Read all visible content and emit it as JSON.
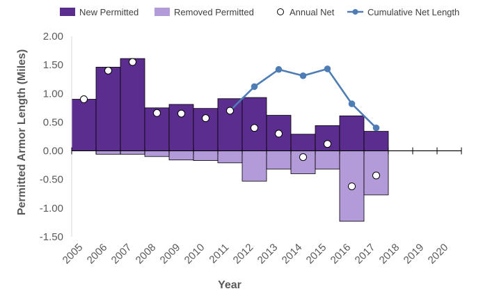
{
  "chart_data": {
    "type": "bar",
    "title": "",
    "xlabel": "Year",
    "ylabel": "Permitted Armor Length (Miles)",
    "ylim": [
      -1.5,
      2.0
    ],
    "ytick_step": 0.5,
    "grid": false,
    "legend_position": "top",
    "categories": [
      "2005",
      "2006",
      "2007",
      "2008",
      "2009",
      "2010",
      "2011",
      "2012",
      "2013",
      "2014",
      "2015",
      "2016",
      "2017",
      "2018",
      "2019",
      "2020"
    ],
    "series": [
      {
        "name": "New Permitted",
        "type": "bar",
        "color": "#5b2d8e",
        "values": [
          0.9,
          1.46,
          1.61,
          0.75,
          0.81,
          0.74,
          0.91,
          0.93,
          0.62,
          0.29,
          0.44,
          0.61,
          0.34,
          null,
          null,
          null
        ]
      },
      {
        "name": "Removed Permitted",
        "type": "bar",
        "color": "#b39ad8",
        "values": [
          0.0,
          -0.06,
          -0.06,
          -0.1,
          -0.16,
          -0.17,
          -0.21,
          -0.53,
          -0.32,
          -0.4,
          -0.32,
          -1.23,
          -0.77,
          null,
          null,
          null
        ]
      },
      {
        "name": "Annual Net",
        "type": "scatter",
        "color": "#ffffff",
        "values": [
          0.9,
          1.4,
          1.55,
          0.66,
          0.65,
          0.57,
          0.7,
          0.4,
          0.3,
          -0.11,
          0.12,
          -0.62,
          -0.43,
          null,
          null,
          null
        ]
      },
      {
        "name": "Cumulative Net Length",
        "type": "line",
        "color": "#4e7db6",
        "values": [
          null,
          null,
          null,
          null,
          null,
          null,
          0.7,
          1.12,
          1.42,
          1.31,
          1.43,
          0.82,
          0.4,
          null,
          null,
          null
        ]
      }
    ]
  }
}
